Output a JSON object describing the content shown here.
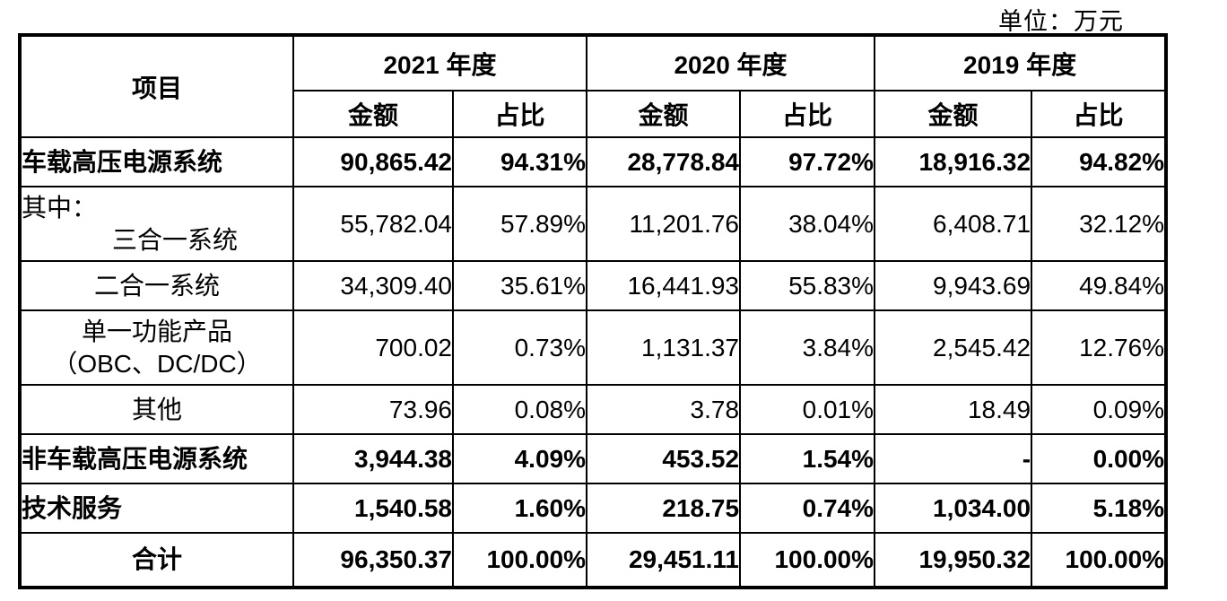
{
  "unit_label": "单位：万元",
  "table": {
    "item_header": "项目",
    "year_groups": [
      {
        "year": "2021 年度",
        "amount_label": "金额",
        "ratio_label": "占比"
      },
      {
        "year": "2020 年度",
        "amount_label": "金额",
        "ratio_label": "占比"
      },
      {
        "year": "2019 年度",
        "amount_label": "金额",
        "ratio_label": "占比"
      }
    ],
    "rows": [
      {
        "label": "车载高压电源系统",
        "values": [
          "90,865.42",
          "94.31%",
          "28,778.84",
          "97.72%",
          "18,916.32",
          "94.82%"
        ]
      },
      {
        "label_prefix": "其中：",
        "label": "三合一系统",
        "values": [
          "55,782.04",
          "57.89%",
          "11,201.76",
          "38.04%",
          "6,408.71",
          "32.12%"
        ]
      },
      {
        "label": "二合一系统",
        "values": [
          "34,309.40",
          "35.61%",
          "16,441.93",
          "55.83%",
          "9,943.69",
          "49.84%"
        ]
      },
      {
        "label_line1": "单一功能产品",
        "label_line2": "（OBC、DC/DC）",
        "values": [
          "700.02",
          "0.73%",
          "1,131.37",
          "3.84%",
          "2,545.42",
          "12.76%"
        ]
      },
      {
        "label": "其他",
        "values": [
          "73.96",
          "0.08%",
          "3.78",
          "0.01%",
          "18.49",
          "0.09%"
        ]
      },
      {
        "label": "非车载高压电源系统",
        "values": [
          "3,944.38",
          "4.09%",
          "453.52",
          "1.54%",
          "-",
          "0.00%"
        ]
      },
      {
        "label": "技术服务",
        "values": [
          "1,540.58",
          "1.60%",
          "218.75",
          "0.74%",
          "1,034.00",
          "5.18%"
        ]
      },
      {
        "label": "合计",
        "values": [
          "96,350.37",
          "100.00%",
          "29,451.11",
          "100.00%",
          "19,950.32",
          "100.00%"
        ]
      }
    ]
  }
}
